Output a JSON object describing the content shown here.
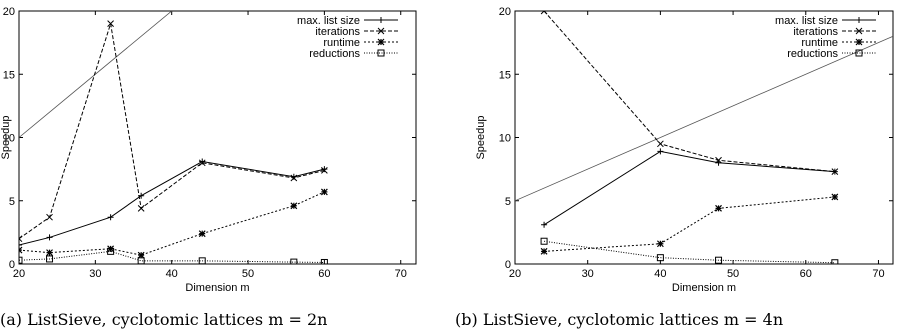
{
  "chart_data": [
    {
      "type": "line",
      "caption": "(a) ListSieve, cyclotomic lattices m = 2n",
      "xlabel": "Dimension m",
      "ylabel": "Speedup",
      "xlim": [
        20,
        72
      ],
      "ylim": [
        0,
        20
      ],
      "x_ticks": [
        "20",
        "30",
        "40",
        "50",
        "60",
        "70"
      ],
      "y_ticks": [
        "0",
        "5",
        "10",
        "15",
        "20"
      ],
      "legend_position": "top",
      "reference_line": {
        "points": [
          [
            20,
            10
          ],
          [
            72,
            36
          ]
        ]
      },
      "series": [
        {
          "name": "max. list size",
          "style": "solid",
          "marker": "plus",
          "points": [
            [
              20,
              1.5
            ],
            [
              24,
              2.1
            ],
            [
              32,
              3.7
            ],
            [
              36,
              5.4
            ],
            [
              44,
              8.1
            ],
            [
              56,
              6.9
            ],
            [
              60,
              7.5
            ]
          ]
        },
        {
          "name": "iterations",
          "style": "dashed",
          "marker": "x",
          "points": [
            [
              20,
              2.0
            ],
            [
              24,
              3.7
            ],
            [
              32,
              19.0
            ],
            [
              36,
              4.4
            ],
            [
              44,
              8.0
            ],
            [
              56,
              6.8
            ],
            [
              60,
              7.4
            ]
          ]
        },
        {
          "name": "runtime",
          "style": "dotted",
          "marker": "star",
          "points": [
            [
              20,
              1.1
            ],
            [
              24,
              0.9
            ],
            [
              32,
              1.2
            ],
            [
              36,
              0.7
            ],
            [
              44,
              2.4
            ],
            [
              56,
              4.6
            ],
            [
              60,
              5.7
            ]
          ]
        },
        {
          "name": "reductions",
          "style": "fine-dotted",
          "marker": "square",
          "points": [
            [
              20,
              0.3
            ],
            [
              24,
              0.4
            ],
            [
              32,
              1.0
            ],
            [
              36,
              0.25
            ],
            [
              44,
              0.25
            ],
            [
              56,
              0.15
            ],
            [
              60,
              0.12
            ]
          ]
        }
      ]
    },
    {
      "type": "line",
      "caption": "(b) ListSieve, cyclotomic lattices m = 4n",
      "xlabel": "Dimension m",
      "ylabel": "Speedup",
      "xlim": [
        20,
        72
      ],
      "ylim": [
        0,
        20
      ],
      "x_ticks": [
        "20",
        "30",
        "40",
        "50",
        "60",
        "70"
      ],
      "y_ticks": [
        "0",
        "5",
        "10",
        "15",
        "20"
      ],
      "legend_position": "top",
      "reference_line": {
        "points": [
          [
            20,
            5
          ],
          [
            72,
            18
          ]
        ]
      },
      "series": [
        {
          "name": "max. list size",
          "style": "solid",
          "marker": "plus",
          "points": [
            [
              24,
              3.1
            ],
            [
              40,
              8.9
            ],
            [
              48,
              8.0
            ],
            [
              64,
              7.3
            ]
          ]
        },
        {
          "name": "iterations",
          "style": "dashed",
          "marker": "x",
          "points": [
            [
              24,
              20
            ],
            [
              40,
              9.5
            ],
            [
              48,
              8.2
            ],
            [
              64,
              7.3
            ]
          ]
        },
        {
          "name": "runtime",
          "style": "dotted",
          "marker": "star",
          "points": [
            [
              24,
              1.0
            ],
            [
              40,
              1.6
            ],
            [
              48,
              4.4
            ],
            [
              64,
              5.3
            ]
          ]
        },
        {
          "name": "reductions",
          "style": "fine-dotted",
          "marker": "square",
          "points": [
            [
              24,
              1.8
            ],
            [
              40,
              0.5
            ],
            [
              48,
              0.3
            ],
            [
              64,
              0.1
            ]
          ]
        }
      ]
    }
  ]
}
